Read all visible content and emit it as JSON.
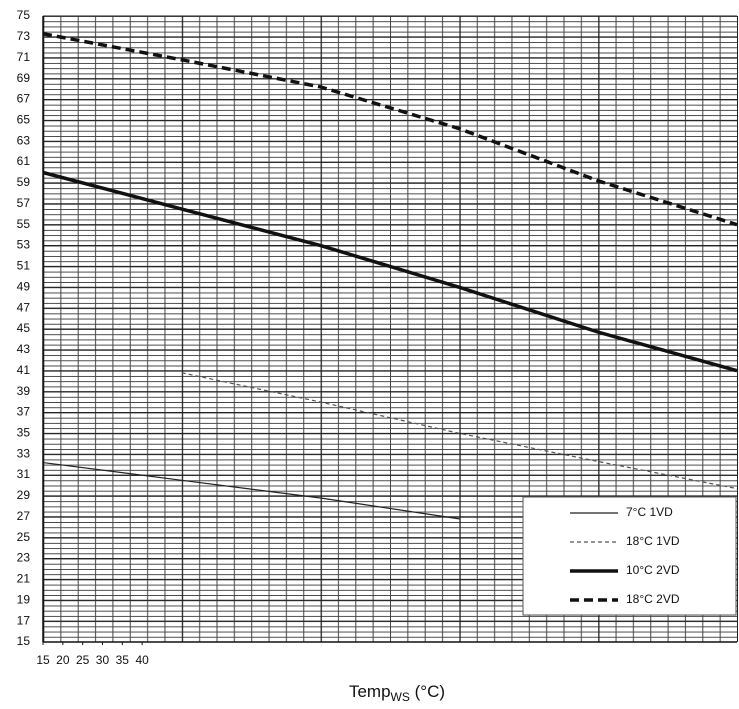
{
  "chart_data": {
    "type": "line",
    "x_label": {
      "main": "Temp",
      "sub": "WS",
      "unit": "(°C)"
    },
    "x": [
      15,
      50,
      85,
      120,
      155,
      190
    ],
    "xlim": [
      15,
      190
    ],
    "xticks": [
      15,
      20,
      25,
      30,
      35,
      40
    ],
    "ylim": [
      15,
      75
    ],
    "yticks": [
      15,
      17,
      19,
      21,
      23,
      25,
      27,
      29,
      31,
      33,
      35,
      37,
      39,
      41,
      43,
      45,
      47,
      49,
      51,
      53,
      55,
      57,
      59,
      61,
      63,
      65,
      67,
      69,
      71,
      73,
      75
    ],
    "grid": true,
    "legend": "lower right",
    "series": [
      {
        "name": "7°C 1VD",
        "color": "#222222",
        "width": 1.2,
        "dash": "none",
        "values": [
          32.2,
          30.5,
          28.8,
          26.8,
          null,
          null
        ]
      },
      {
        "name": "18°C 1VD",
        "color": "#555555",
        "width": 1.2,
        "dash": "4 3",
        "values": [
          null,
          40.8,
          38.0,
          35.0,
          32.3,
          29.7
        ]
      },
      {
        "name": "10°C 2VD",
        "color": "#111111",
        "width": 3.5,
        "dash": "none",
        "values": [
          60.0,
          56.5,
          53.0,
          49.0,
          44.7,
          41.0
        ]
      },
      {
        "name": "18°C 2VD",
        "color": "#111111",
        "width": 3.5,
        "dash": "9 5",
        "values": [
          73.3,
          70.8,
          68.2,
          64.2,
          59.2,
          55.0
        ]
      }
    ]
  }
}
